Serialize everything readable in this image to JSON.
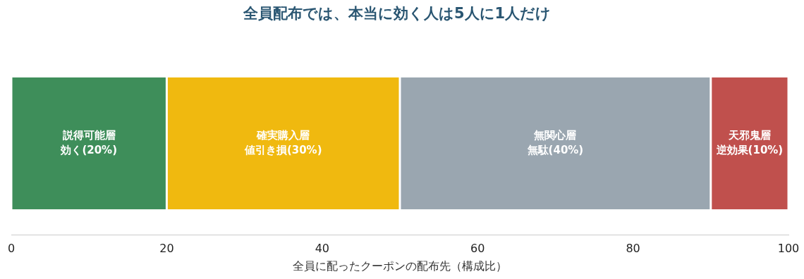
{
  "chart_data": {
    "type": "bar",
    "orientation": "horizontal",
    "stacked": true,
    "title": "全員配布では、本当に効く人は5人に1人だけ",
    "xlabel": "全員に配ったクーポンの配布先（構成比）",
    "categories": [
      null
    ],
    "series": [
      {
        "name": "説得可能層",
        "color": "#3e8e5a",
        "values": [
          20
        ],
        "value_labels": [
          "効く(20%)"
        ]
      },
      {
        "name": "確実購入層",
        "color": "#f0b90f",
        "values": [
          30
        ],
        "value_labels": [
          "値引き損(30%)"
        ]
      },
      {
        "name": "無関心層",
        "color": "#9aa6b0",
        "values": [
          40
        ],
        "value_labels": [
          "無駄(40%)"
        ]
      },
      {
        "name": "天邪鬼層",
        "color": "#c0504d",
        "values": [
          10
        ],
        "value_labels": [
          "逆効果(10%)"
        ]
      }
    ],
    "xlim": [
      0,
      100
    ],
    "xticks": [
      0,
      20,
      40,
      60,
      80,
      100
    ],
    "tick_labels": "x",
    "grid": false,
    "legend": false
  }
}
